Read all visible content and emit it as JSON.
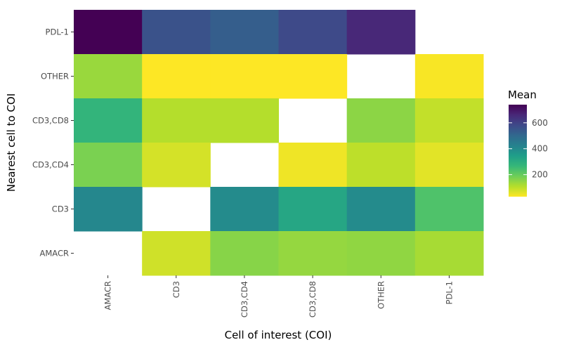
{
  "chart_data": {
    "type": "heatmap",
    "title": "",
    "xlabel": "Cell of interest (COI)",
    "ylabel": "Nearest cell to COI",
    "x_categories": [
      "AMACR",
      "CD3",
      "CD3,CD4",
      "CD3,CD8",
      "OTHER",
      "PDL-1"
    ],
    "y_categories": [
      "AMACR",
      "CD3",
      "CD3,CD4",
      "CD3,CD8",
      "OTHER",
      "PDL-1"
    ],
    "cells": [
      {
        "x": "AMACR",
        "y": "PDL-1",
        "value": 740
      },
      {
        "x": "CD3",
        "y": "PDL-1",
        "value": 560
      },
      {
        "x": "CD3,CD4",
        "y": "PDL-1",
        "value": 530
      },
      {
        "x": "CD3,CD8",
        "y": "PDL-1",
        "value": 580
      },
      {
        "x": "OTHER",
        "y": "PDL-1",
        "value": 660
      },
      {
        "x": "AMACR",
        "y": "OTHER",
        "value": 140
      },
      {
        "x": "CD3",
        "y": "OTHER",
        "value": 30
      },
      {
        "x": "CD3,CD4",
        "y": "OTHER",
        "value": 30
      },
      {
        "x": "CD3,CD8",
        "y": "OTHER",
        "value": 30
      },
      {
        "x": "PDL-1",
        "y": "OTHER",
        "value": 35
      },
      {
        "x": "AMACR",
        "y": "CD3,CD8",
        "value": 275
      },
      {
        "x": "CD3",
        "y": "CD3,CD8",
        "value": 110
      },
      {
        "x": "CD3,CD4",
        "y": "CD3,CD8",
        "value": 110
      },
      {
        "x": "OTHER",
        "y": "CD3,CD8",
        "value": 155
      },
      {
        "x": "PDL-1",
        "y": "CD3,CD8",
        "value": 95
      },
      {
        "x": "AMACR",
        "y": "CD3,CD4",
        "value": 175
      },
      {
        "x": "CD3",
        "y": "CD3,CD4",
        "value": 75
      },
      {
        "x": "CD3,CD8",
        "y": "CD3,CD4",
        "value": 45
      },
      {
        "x": "OTHER",
        "y": "CD3,CD4",
        "value": 100
      },
      {
        "x": "PDL-1",
        "y": "CD3,CD4",
        "value": 60
      },
      {
        "x": "AMACR",
        "y": "CD3",
        "value": 410
      },
      {
        "x": "CD3,CD4",
        "y": "CD3",
        "value": 400
      },
      {
        "x": "CD3,CD8",
        "y": "CD3",
        "value": 320
      },
      {
        "x": "OTHER",
        "y": "CD3",
        "value": 400
      },
      {
        "x": "PDL-1",
        "y": "CD3",
        "value": 230
      },
      {
        "x": "CD3",
        "y": "AMACR",
        "value": 80
      },
      {
        "x": "CD3,CD4",
        "y": "AMACR",
        "value": 160
      },
      {
        "x": "CD3,CD8",
        "y": "AMACR",
        "value": 145
      },
      {
        "x": "OTHER",
        "y": "AMACR",
        "value": 150
      },
      {
        "x": "PDL-1",
        "y": "AMACR",
        "value": 125
      }
    ],
    "legend": {
      "title": "Mean",
      "ticks": [
        200,
        400,
        600
      ],
      "range": [
        30,
        740
      ],
      "placement": "right"
    },
    "colormap": "viridis-reversed",
    "colorscale": [
      "#fde725",
      "#b5de2b",
      "#6ece58",
      "#35b779",
      "#1f9e89",
      "#26828e",
      "#31688e",
      "#3e4989",
      "#482878",
      "#440154"
    ],
    "grid": false
  }
}
